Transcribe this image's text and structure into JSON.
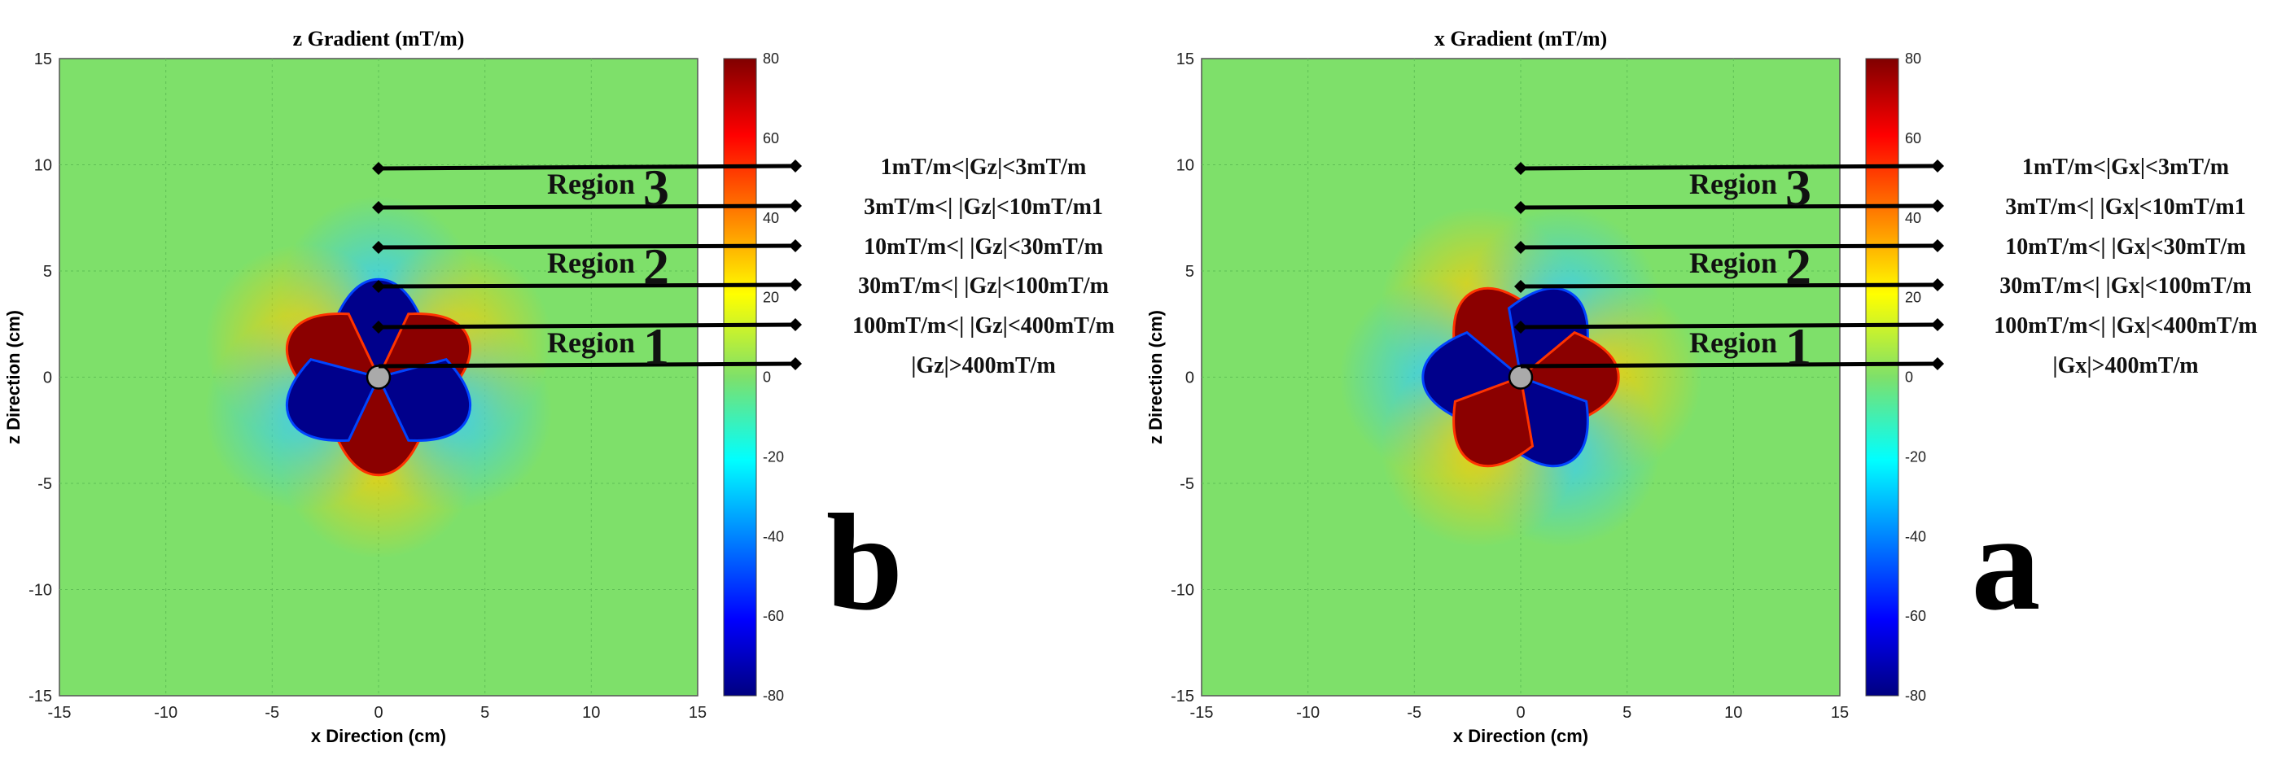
{
  "colors": {
    "background_field": "#7ee06a",
    "positive": "#8b0000",
    "negative": "#00008b",
    "line": "#000000",
    "center_marker": "#aaaaaa"
  },
  "colorbar": {
    "ticks": [
      "80",
      "60",
      "40",
      "20",
      "0",
      "-20",
      "-40",
      "-60",
      "-80"
    ],
    "colormap": "jet"
  },
  "chart_data": [
    {
      "type": "heatmap",
      "title": "z Gradient (mT/m)",
      "xlabel": "x Direction (cm)",
      "ylabel": "z Direction (cm)",
      "xlim": [
        -15,
        15
      ],
      "ylim": [
        -15,
        15
      ],
      "x_ticks": [
        "-15",
        "-10",
        "-5",
        "0",
        "5",
        "10",
        "15"
      ],
      "y_ticks": [
        "15",
        "10",
        "5",
        "0",
        "-5",
        "-10",
        "-15"
      ],
      "clim": [
        -80,
        80
      ],
      "grid": true,
      "panel_label": "b",
      "lobes": [
        {
          "angle_deg": 90,
          "sign": "negative"
        },
        {
          "angle_deg": -90,
          "sign": "positive"
        },
        {
          "angle_deg": 25,
          "sign": "positive"
        },
        {
          "angle_deg": 155,
          "sign": "positive"
        },
        {
          "angle_deg": -25,
          "sign": "negative"
        },
        {
          "angle_deg": -155,
          "sign": "negative"
        }
      ],
      "regions": [
        {
          "label": "Region",
          "number": "3"
        },
        {
          "label": "Region",
          "number": "2"
        },
        {
          "label": "Region",
          "number": "1"
        }
      ],
      "ranges": [
        "1mT/m<|Gz|<3mT/m",
        "3mT/m<| |Gz|<10mT/m1",
        "10mT/m<| |Gz|<30mT/m",
        "30mT/m<| |Gz|<100mT/m",
        "100mT/m<| |Gz|<400mT/m",
        "|Gz|>400mT/m"
      ]
    },
    {
      "type": "heatmap",
      "title": "x Gradient (mT/m)",
      "xlabel": "x Direction (cm)",
      "ylabel": "z Direction (cm)",
      "xlim": [
        -15,
        15
      ],
      "ylim": [
        -15,
        15
      ],
      "x_ticks": [
        "-15",
        "-10",
        "-5",
        "0",
        "5",
        "10",
        "15"
      ],
      "y_ticks": [
        "15",
        "10",
        "5",
        "0",
        "-5",
        "-10",
        "-15"
      ],
      "clim": [
        -80,
        80
      ],
      "grid": true,
      "panel_label": "a",
      "lobes": [
        {
          "angle_deg": 120,
          "sign": "positive"
        },
        {
          "angle_deg": 60,
          "sign": "negative"
        },
        {
          "angle_deg": 0,
          "sign": "positive"
        },
        {
          "angle_deg": 180,
          "sign": "negative"
        },
        {
          "angle_deg": -60,
          "sign": "negative"
        },
        {
          "angle_deg": -120,
          "sign": "positive"
        }
      ],
      "regions": [
        {
          "label": "Region",
          "number": "3"
        },
        {
          "label": "Region",
          "number": "2"
        },
        {
          "label": "Region",
          "number": "1"
        }
      ],
      "ranges": [
        "1mT/m<|Gx|<3mT/m",
        "3mT/m<| |Gx|<10mT/m1",
        "10mT/m<| |Gx|<30mT/m",
        "30mT/m<| |Gx|<100mT/m",
        "100mT/m<| |Gx|<400mT/m",
        "|Gx|>400mT/m"
      ]
    }
  ]
}
